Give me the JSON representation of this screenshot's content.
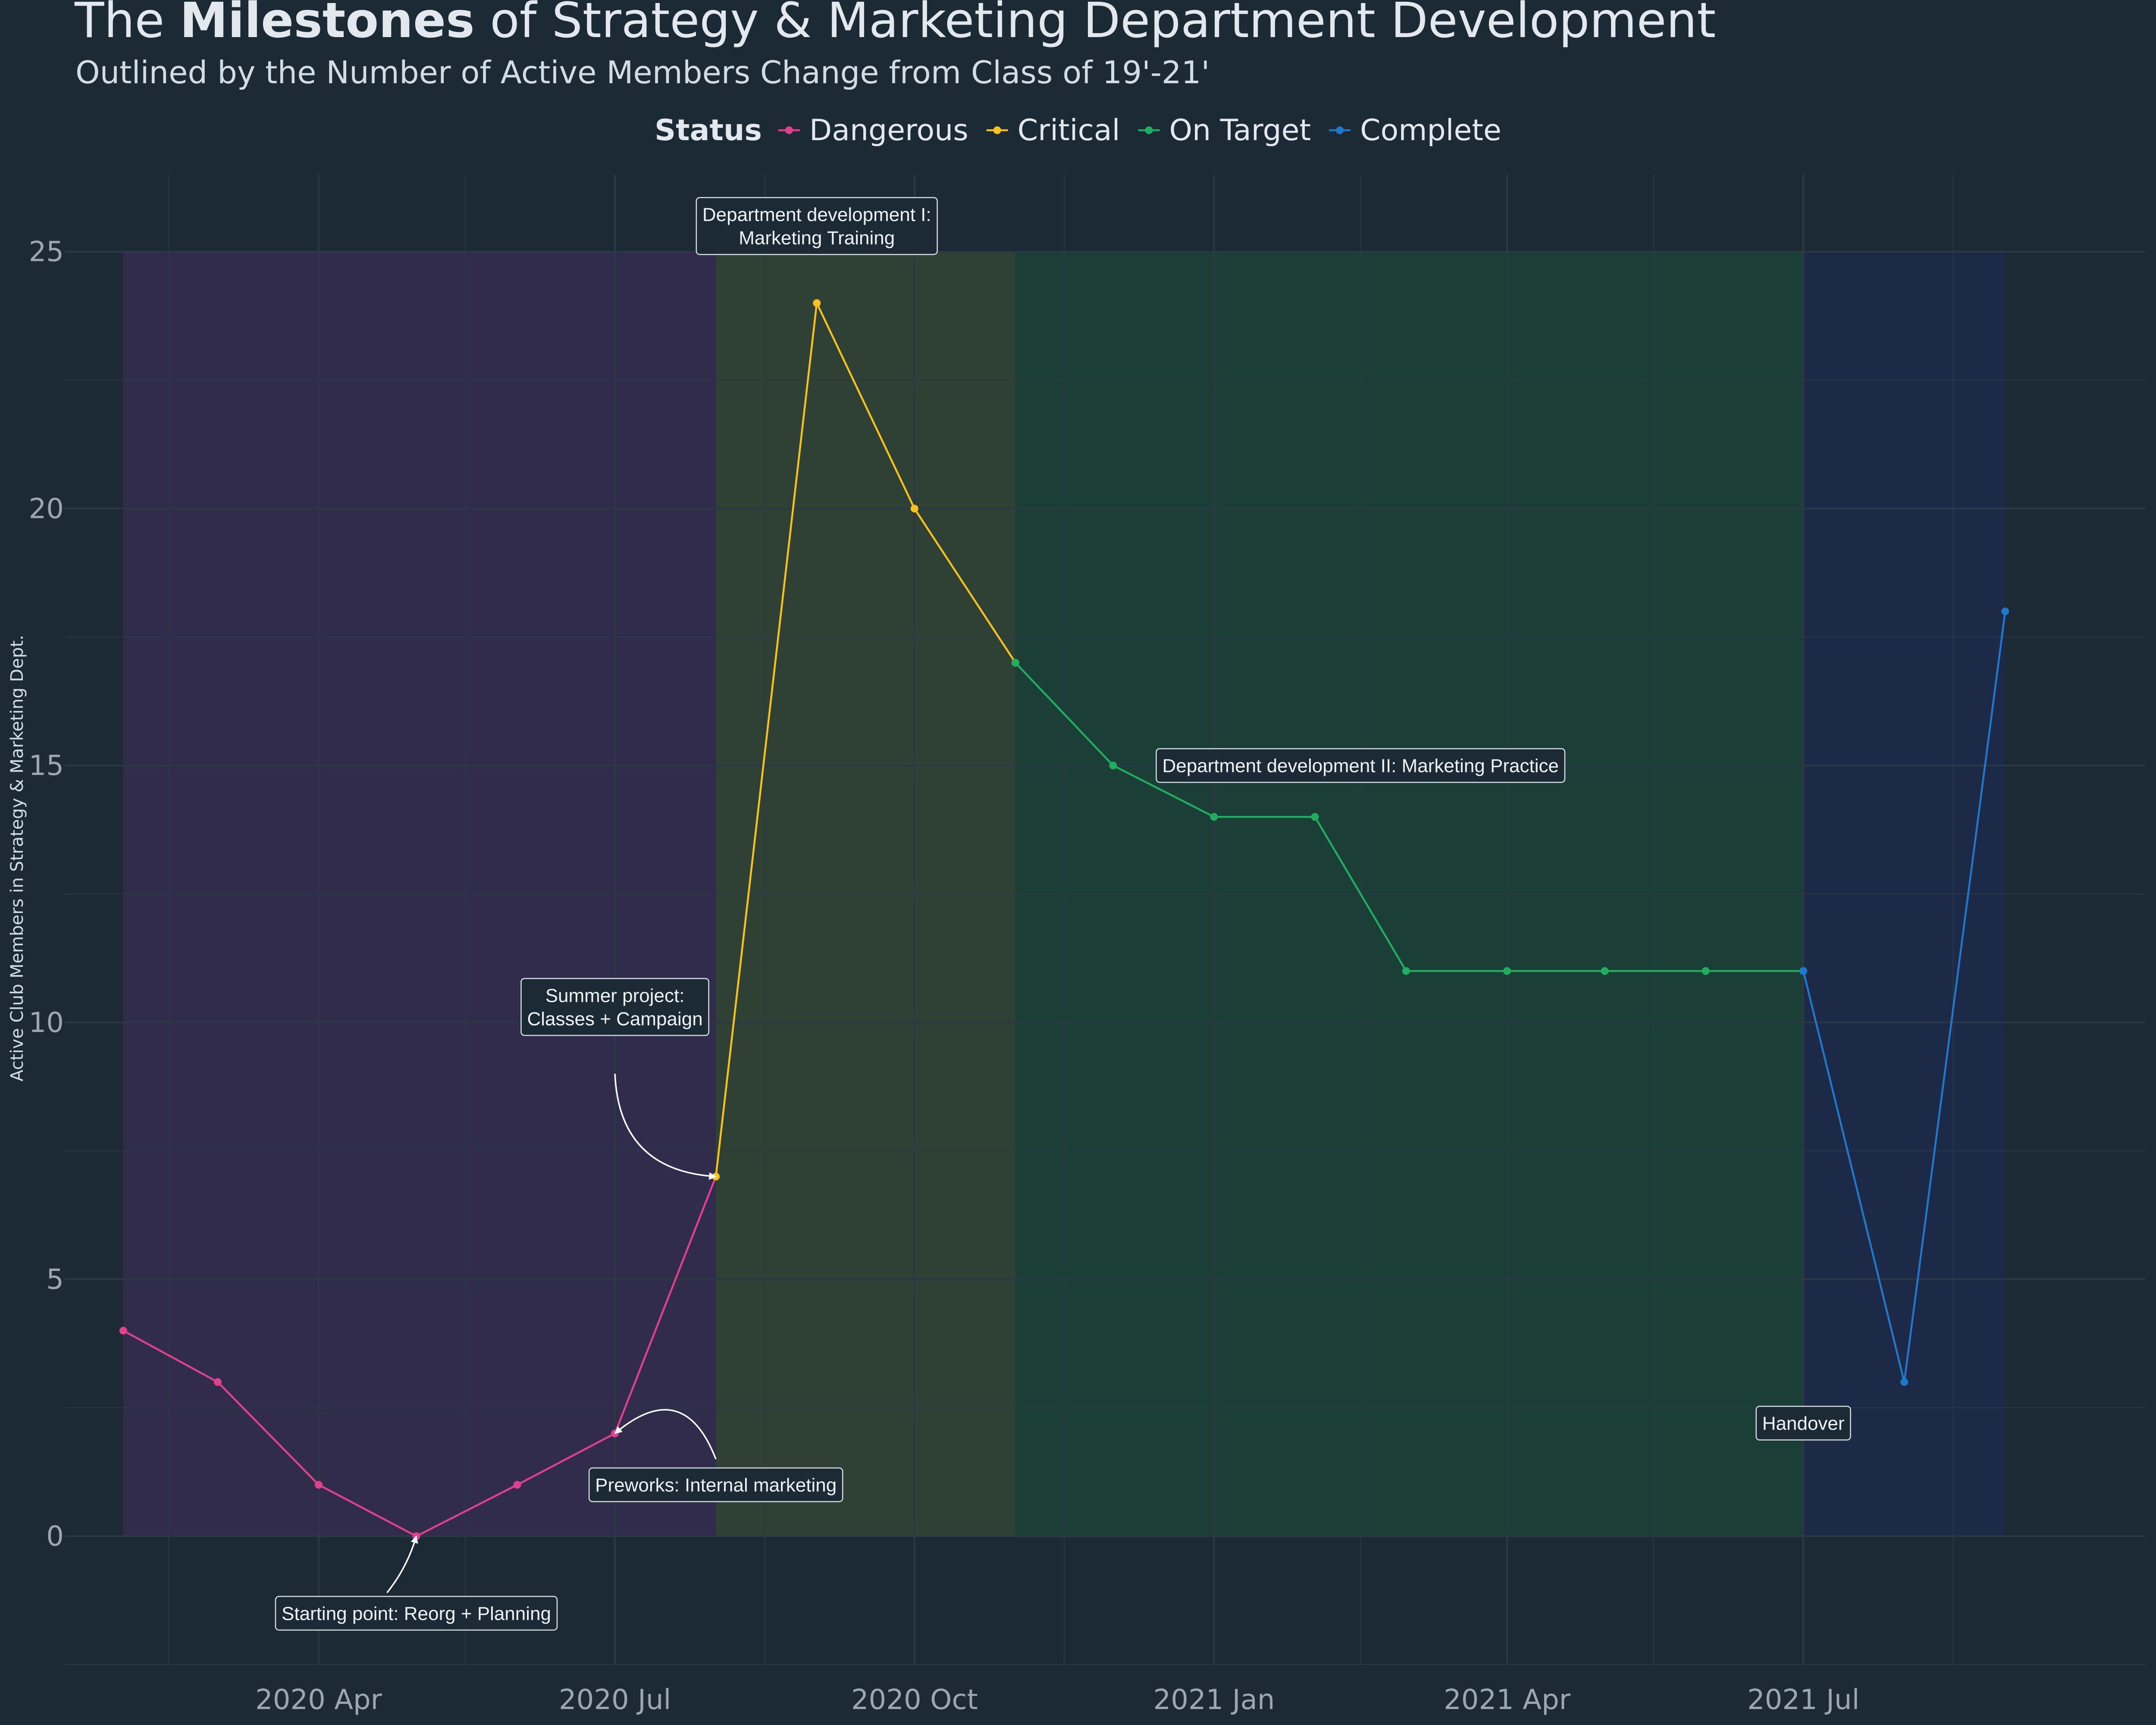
{
  "title": {
    "prefix": "The ",
    "bold": "Milestones",
    "suffix": " of Strategy & Marketing Department Development"
  },
  "subtitle": "Outlined by the Number of Active Members Change from Class of 19'-21'",
  "colors": {
    "background": "#1b2a35",
    "grid": "#2a3945",
    "Dangerous": "#e0408e",
    "Critical": "#f5c21b",
    "On Target": "#1fae5f",
    "Complete": "#1f78c8",
    "band_Dangerous": "#312c4b",
    "band_Critical": "#2f4035",
    "band_On Target": "#1b3f37",
    "band_Complete": "#1c2a48",
    "annotation_border": "#d9e1e7"
  },
  "legend": {
    "title": "Status",
    "items": [
      "Dangerous",
      "Critical",
      "On Target",
      "Complete"
    ],
    "placement": "top"
  },
  "chart_data": {
    "type": "line",
    "title": "The Milestones of Strategy & Marketing Department Development",
    "subtitle": "Outlined by the Number of Active Members Change from Class of 19'-21'",
    "xlabel": "",
    "ylabel": "Active Club Members in Strategy & Marketing Dept.",
    "xlim": [
      "2020-01-14",
      "2021-10-14"
    ],
    "ylim": [
      -2.5,
      26.5
    ],
    "x_ticks": [
      {
        "date": "2020-04-01",
        "label": "2020 Apr"
      },
      {
        "date": "2020-07-01",
        "label": "2020 Jul"
      },
      {
        "date": "2020-10-01",
        "label": "2020 Oct"
      },
      {
        "date": "2021-01-01",
        "label": "2021 Jan"
      },
      {
        "date": "2021-04-01",
        "label": "2021 Apr"
      },
      {
        "date": "2021-07-01",
        "label": "2021 Jul"
      }
    ],
    "x_minor_ticks": [
      "2020-02-15",
      "2020-05-16",
      "2020-08-16",
      "2020-11-16",
      "2021-02-15",
      "2021-05-16",
      "2021-08-16"
    ],
    "y_ticks": [
      0,
      5,
      10,
      15,
      20,
      25
    ],
    "y_minor_ticks": [
      -2.5,
      2.5,
      7.5,
      12.5,
      17.5,
      22.5
    ],
    "grid": true,
    "bands": [
      {
        "status": "Dangerous",
        "x_start": "2020-02-01",
        "x_end": "2020-08-01",
        "y_min": 0,
        "y_max": 25
      },
      {
        "status": "Critical",
        "x_start": "2020-08-01",
        "x_end": "2020-11-01",
        "y_min": 0,
        "y_max": 25
      },
      {
        "status": "On Target",
        "x_start": "2020-11-01",
        "x_end": "2021-07-01",
        "y_min": 0,
        "y_max": 25
      },
      {
        "status": "Complete",
        "x_start": "2021-07-01",
        "x_end": "2021-09-01",
        "y_min": 0,
        "y_max": 25
      }
    ],
    "series": [
      {
        "name": "Dangerous",
        "x": [
          "2020-02-01",
          "2020-03-01",
          "2020-04-01",
          "2020-05-01",
          "2020-06-01",
          "2020-07-01",
          "2020-08-01"
        ],
        "values": [
          4,
          3,
          1,
          0,
          1,
          2,
          7
        ]
      },
      {
        "name": "Critical",
        "x": [
          "2020-08-01",
          "2020-09-01",
          "2020-10-01",
          "2020-11-01"
        ],
        "values": [
          7,
          24,
          20,
          17
        ]
      },
      {
        "name": "On Target",
        "x": [
          "2020-11-01",
          "2020-12-01",
          "2021-01-01",
          "2021-02-01",
          "2021-03-01",
          "2021-04-01",
          "2021-05-01",
          "2021-06-01",
          "2021-07-01"
        ],
        "values": [
          17,
          15,
          14,
          14,
          11,
          11,
          11,
          11,
          11
        ]
      },
      {
        "name": "Complete",
        "x": [
          "2021-07-01",
          "2021-08-01",
          "2021-09-01"
        ],
        "values": [
          11,
          3,
          18
        ]
      }
    ],
    "annotations": [
      {
        "lines": [
          "Starting point: Reorg + Planning"
        ],
        "x": "2020-05-01",
        "y": -1.5,
        "arrow_to": {
          "x": "2020-05-01",
          "y": 0
        },
        "arrow_from": {
          "x": "2020-04-22",
          "y": -1.1
        },
        "curvature": 0.1
      },
      {
        "lines": [
          "Preworks: Internal marketing"
        ],
        "x": "2020-08-01",
        "y": 1.0,
        "arrow_to": {
          "x": "2020-07-01",
          "y": 2
        },
        "arrow_from": {
          "x": "2020-08-01",
          "y": 1.5
        },
        "curvature": 0.7
      },
      {
        "lines": [
          "Summer project:",
          "Classes + Campaign"
        ],
        "x": "2020-07-01",
        "y": 10.3,
        "arrow_to": {
          "x": "2020-08-01",
          "y": 7
        },
        "arrow_from": {
          "x": "2020-07-01",
          "y": 9
        },
        "curvature": 0.45
      },
      {
        "lines": [
          "Department development I:",
          "Marketing Training"
        ],
        "x": "2020-09-01",
        "y": 25.5
      },
      {
        "lines": [
          "Department development II: Marketing Practice"
        ],
        "x": "2021-02-15",
        "y": 15
      },
      {
        "lines": [
          "Handover"
        ],
        "x": "2021-07-01",
        "y": 2.2
      }
    ]
  }
}
